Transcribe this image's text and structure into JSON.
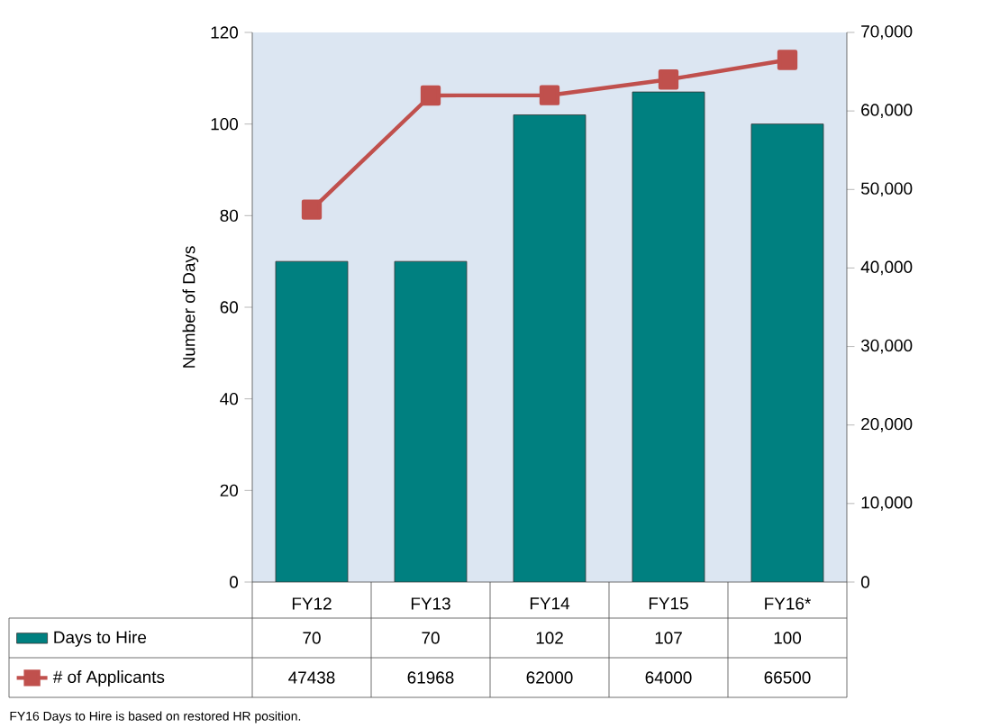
{
  "chart_data": {
    "type": "bar",
    "categories": [
      "FY12",
      "FY13",
      "FY14",
      "FY15",
      "FY16*"
    ],
    "series": [
      {
        "name": "Days to Hire",
        "color": "#008080",
        "values": [
          70,
          70,
          102,
          107,
          100
        ]
      },
      {
        "name": "# of Applicants",
        "type": "line",
        "axis": "y2",
        "color": "#c0504d",
        "values": [
          47438,
          61968,
          62000,
          64000,
          66500
        ]
      }
    ],
    "ylabel": "Number of Days",
    "ylim": [
      0,
      120
    ],
    "yticks": [
      0,
      20,
      40,
      60,
      80,
      100,
      120
    ],
    "y2lim": [
      0,
      70000
    ],
    "y2ticks": [
      {
        "value": 0,
        "label": "0"
      },
      {
        "value": 10000,
        "label": "10,000"
      },
      {
        "value": 20000,
        "label": "20,000"
      },
      {
        "value": 30000,
        "label": "30,000"
      },
      {
        "value": 40000,
        "label": "40,000"
      },
      {
        "value": 50000,
        "label": "50,000"
      },
      {
        "value": 60000,
        "label": "60,000"
      },
      {
        "value": 70000,
        "label": "70,000"
      }
    ],
    "marker": "square",
    "line_style": "solid",
    "legend": "bottom",
    "data_labels": true,
    "grid": false,
    "annotations": [
      "FY16 Days to Hire  is based on restored HR position."
    ]
  }
}
